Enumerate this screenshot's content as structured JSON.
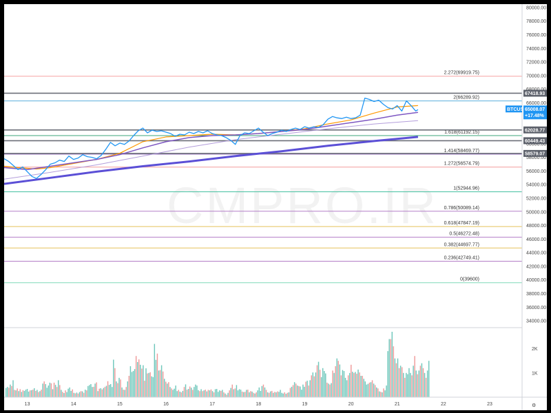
{
  "watermark": "CMPRO.IR",
  "chart_data": {
    "type": "line",
    "symbol": "BTCUSD",
    "last_price": "65008.07",
    "change_pct": "+17.48%",
    "y_ticks": [
      "80000.00",
      "78000.00",
      "76000.00",
      "74000.00",
      "72000.00",
      "70000.00",
      "68000.00",
      "66000.00",
      "64000.00",
      "62000.00",
      "60000.00",
      "58000.00",
      "56000.00",
      "54000.00",
      "52000.00",
      "50000.00",
      "48000.00",
      "46000.00",
      "44000.00",
      "42000.00",
      "40000.00",
      "38000.00",
      "36000.00",
      "34000.00"
    ],
    "ylim": [
      33000,
      80500
    ],
    "x_ticks": [
      {
        "label": "13",
        "x": 13.5
      },
      {
        "label": "14",
        "x": 14.5
      },
      {
        "label": "15",
        "x": 15.5
      },
      {
        "label": "16",
        "x": 16.5
      },
      {
        "label": "17",
        "x": 17.5
      },
      {
        "label": "18",
        "x": 18.5
      },
      {
        "label": "19",
        "x": 19.5
      },
      {
        "label": "20",
        "x": 20.5
      },
      {
        "label": "21",
        "x": 21.5
      },
      {
        "label": "22",
        "x": 22.5
      },
      {
        "label": "23",
        "x": 23.5
      }
    ],
    "xlim": [
      13.0,
      24.2
    ],
    "volume_ticks": [
      "2K",
      "1K"
    ],
    "volume_ylim": [
      0,
      2700
    ],
    "fib_levels": [
      {
        "label": "2.272(69919.75)",
        "value": 69919.75,
        "color": "#f7a1a1"
      },
      {
        "label": "2(66289.92)",
        "value": 66289.92,
        "color": "#5aaedc"
      },
      {
        "label": "1.618(61192.15)",
        "value": 61192.15,
        "color": "#3aa57a"
      },
      {
        "label": "1.414(58469.77)",
        "value": 58469.77,
        "color": "#a07ac8"
      },
      {
        "label": "1.272(56574.79)",
        "value": 56574.79,
        "color": "#f39a9a"
      },
      {
        "label": "1(52944.96)",
        "value": 52944.96,
        "color": "#3fbf9e"
      },
      {
        "label": "0.786(50089.14)",
        "value": 50089.14,
        "color": "#b37cc7"
      },
      {
        "label": "0.618(47847.19)",
        "value": 47847.19,
        "color": "#e5c15a"
      },
      {
        "label": "0.5(46272.48)",
        "value": 46272.48,
        "color": "#b37cc7"
      },
      {
        "label": "0.382(44697.77)",
        "value": 44697.77,
        "color": "#e5c15a"
      },
      {
        "label": "0.236(42749.41)",
        "value": 42749.41,
        "color": "#b37cc7"
      },
      {
        "label": "0(39600)",
        "value": 39600,
        "color": "#7fd9b8"
      }
    ],
    "horizontal_levels": [
      {
        "label": "67418.93",
        "value": 67418.93
      },
      {
        "label": "62028.77",
        "value": 62028.77
      },
      {
        "label": "60449.43",
        "value": 60449.43
      },
      {
        "label": "58579.07",
        "value": 58579.07
      }
    ],
    "price_series": {
      "color": "#2196f3",
      "points": [
        [
          13.0,
          57800
        ],
        [
          13.1,
          57400
        ],
        [
          13.2,
          56800
        ],
        [
          13.3,
          56200
        ],
        [
          13.4,
          56600
        ],
        [
          13.5,
          55900
        ],
        [
          13.6,
          55200
        ],
        [
          13.7,
          54900
        ],
        [
          13.8,
          55500
        ],
        [
          13.9,
          56200
        ],
        [
          14.0,
          57000
        ],
        [
          14.1,
          57200
        ],
        [
          14.2,
          57600
        ],
        [
          14.3,
          57400
        ],
        [
          14.4,
          58200
        ],
        [
          14.5,
          57700
        ],
        [
          14.6,
          57900
        ],
        [
          14.7,
          58400
        ],
        [
          14.8,
          58100
        ],
        [
          14.9,
          58000
        ],
        [
          15.0,
          57800
        ],
        [
          15.1,
          58300
        ],
        [
          15.2,
          59200
        ],
        [
          15.3,
          60200
        ],
        [
          15.4,
          59700
        ],
        [
          15.5,
          60100
        ],
        [
          15.6,
          59900
        ],
        [
          15.7,
          60400
        ],
        [
          15.8,
          61200
        ],
        [
          15.9,
          61900
        ],
        [
          16.0,
          62300
        ],
        [
          16.1,
          61600
        ],
        [
          16.2,
          62000
        ],
        [
          16.3,
          61800
        ],
        [
          16.4,
          61900
        ],
        [
          16.5,
          61700
        ],
        [
          16.6,
          61500
        ],
        [
          16.7,
          61100
        ],
        [
          16.8,
          61400
        ],
        [
          16.9,
          61300
        ],
        [
          17.0,
          61700
        ],
        [
          17.1,
          61500
        ],
        [
          17.2,
          61800
        ],
        [
          17.3,
          61600
        ],
        [
          17.4,
          61900
        ],
        [
          17.5,
          61500
        ],
        [
          17.6,
          61300
        ],
        [
          17.7,
          61200
        ],
        [
          17.8,
          60900
        ],
        [
          17.9,
          60500
        ],
        [
          18.0,
          59900
        ],
        [
          18.1,
          61200
        ],
        [
          18.2,
          61600
        ],
        [
          18.3,
          61500
        ],
        [
          18.4,
          61900
        ],
        [
          18.5,
          62300
        ],
        [
          18.6,
          61700
        ],
        [
          18.7,
          61200
        ],
        [
          18.8,
          61500
        ],
        [
          18.9,
          61700
        ],
        [
          19.0,
          62000
        ],
        [
          19.1,
          61800
        ],
        [
          19.2,
          62100
        ],
        [
          19.3,
          62300
        ],
        [
          19.4,
          62100
        ],
        [
          19.5,
          62500
        ],
        [
          19.6,
          62300
        ],
        [
          19.7,
          62500
        ],
        [
          19.8,
          62400
        ],
        [
          19.9,
          62800
        ],
        [
          20.0,
          63600
        ],
        [
          20.1,
          64000
        ],
        [
          20.2,
          63800
        ],
        [
          20.3,
          63700
        ],
        [
          20.4,
          63900
        ],
        [
          20.5,
          63700
        ],
        [
          20.6,
          63800
        ],
        [
          20.7,
          64200
        ],
        [
          20.8,
          66700
        ],
        [
          20.9,
          66500
        ],
        [
          21.0,
          66200
        ],
        [
          21.1,
          66400
        ],
        [
          21.2,
          65800
        ],
        [
          21.3,
          65300
        ],
        [
          21.4,
          65100
        ],
        [
          21.5,
          65600
        ],
        [
          21.6,
          64800
        ],
        [
          21.7,
          66300
        ],
        [
          21.8,
          65600
        ],
        [
          21.9,
          64800
        ],
        [
          21.95,
          65008
        ]
      ]
    },
    "ma_series": [
      {
        "color": "#ff9800",
        "width": 1.2,
        "points": [
          [
            13.0,
            56700
          ],
          [
            13.3,
            56500
          ],
          [
            13.7,
            56300
          ],
          [
            14.0,
            56500
          ],
          [
            14.5,
            57100
          ],
          [
            15.0,
            57700
          ],
          [
            15.5,
            58600
          ],
          [
            16.0,
            60300
          ],
          [
            16.5,
            61000
          ],
          [
            17.0,
            61200
          ],
          [
            17.5,
            61400
          ],
          [
            18.0,
            61300
          ],
          [
            18.5,
            61500
          ],
          [
            19.0,
            61800
          ],
          [
            19.5,
            62200
          ],
          [
            20.0,
            62900
          ],
          [
            20.5,
            63500
          ],
          [
            21.0,
            64500
          ],
          [
            21.5,
            65400
          ],
          [
            21.95,
            65600
          ]
        ]
      },
      {
        "color": "#7e57c2",
        "width": 1.5,
        "points": [
          [
            13.0,
            56500
          ],
          [
            13.5,
            56200
          ],
          [
            14.0,
            56700
          ],
          [
            14.5,
            57200
          ],
          [
            15.0,
            57700
          ],
          [
            15.5,
            58400
          ],
          [
            16.0,
            59400
          ],
          [
            16.5,
            60300
          ],
          [
            17.0,
            60900
          ],
          [
            17.5,
            61200
          ],
          [
            18.0,
            61300
          ],
          [
            18.5,
            61500
          ],
          [
            19.0,
            61800
          ],
          [
            19.5,
            62100
          ],
          [
            20.0,
            62600
          ],
          [
            20.5,
            63100
          ],
          [
            21.0,
            63600
          ],
          [
            21.5,
            64200
          ],
          [
            21.95,
            64600
          ]
        ]
      },
      {
        "color": "#b39ddb",
        "width": 1.0,
        "points": [
          [
            13.0,
            54800
          ],
          [
            14.0,
            55800
          ],
          [
            15.0,
            56900
          ],
          [
            16.0,
            58200
          ],
          [
            17.0,
            59500
          ],
          [
            18.0,
            60600
          ],
          [
            19.0,
            61400
          ],
          [
            20.0,
            62200
          ],
          [
            21.0,
            62900
          ],
          [
            21.95,
            63400
          ]
        ]
      },
      {
        "color": "#5b4fd6",
        "width": 3.0,
        "points": [
          [
            13.0,
            54100
          ],
          [
            14.0,
            55000
          ],
          [
            15.0,
            55900
          ],
          [
            16.0,
            56700
          ],
          [
            17.0,
            57400
          ],
          [
            18.0,
            58200
          ],
          [
            19.0,
            58900
          ],
          [
            20.0,
            59700
          ],
          [
            21.0,
            60400
          ],
          [
            21.95,
            61000
          ]
        ]
      }
    ],
    "volume": [
      380,
      420,
      390,
      520,
      460,
      700,
      300,
      280,
      360,
      250,
      330,
      220,
      290,
      260,
      310,
      340,
      230,
      280,
      290,
      310,
      370,
      260,
      300,
      210,
      250,
      310,
      560,
      650,
      540,
      390,
      480,
      600,
      570,
      330,
      600,
      510,
      420,
      700,
      500,
      300,
      220,
      170,
      280,
      210,
      350,
      400,
      260,
      320,
      180,
      160,
      190,
      150,
      210,
      250,
      240,
      180,
      310,
      280,
      460,
      500,
      540,
      420,
      430,
      560,
      610,
      250,
      350,
      370,
      320,
      380,
      430,
      470,
      660,
      510,
      540,
      420,
      1550,
      1200,
      650,
      580,
      800,
      730,
      400,
      310,
      300,
      420,
      650,
      880,
      1280,
      1040,
      1080,
      1160,
      1700,
      1450,
      1560,
      1340,
      1180,
      1320,
      680,
      1190,
      980,
      1000,
      1030,
      860,
      830,
      2200,
      1540,
      1800,
      1100,
      1120,
      1320,
      1060,
      760,
      640,
      560,
      620,
      420,
      360,
      300,
      350,
      480,
      250,
      300,
      230,
      200,
      260,
      420,
      530,
      310,
      340,
      440,
      390,
      300,
      420,
      520,
      480,
      290,
      250,
      330,
      250,
      280,
      310,
      240,
      300,
      280,
      320,
      250,
      200,
      330,
      340,
      220,
      280,
      260,
      300,
      200,
      150,
      100,
      180,
      280,
      380,
      520,
      330,
      360,
      500,
      280,
      330,
      310,
      230,
      210,
      220,
      300,
      310,
      200,
      250,
      230,
      180,
      150,
      200,
      280,
      400,
      260,
      460,
      520,
      400,
      300,
      200,
      180,
      240,
      260,
      180,
      220,
      200,
      240,
      220,
      300,
      180,
      150,
      200,
      140,
      180,
      200,
      380,
      430,
      500,
      620,
      560,
      480,
      460,
      440,
      310,
      520,
      430,
      640,
      680,
      480,
      700,
      900,
      1020,
      860,
      1020,
      1320,
      1460,
      1130,
      830,
      1200,
      1080,
      980,
      600,
      560,
      520,
      580,
      1100,
      1000,
      1280,
      1600,
      1500,
      1350,
      900,
      1120,
      1080,
      800,
      700,
      900,
      1000,
      1340,
      1050,
      1000,
      1040,
      970,
      1140,
      1020,
      880,
      880,
      760,
      650,
      520,
      550,
      600,
      620,
      700,
      560,
      500,
      400,
      360,
      240,
      220,
      200,
      360,
      280,
      480,
      1900,
      2400,
      2400,
      2700,
      2100,
      1600,
      1400,
      1600,
      1200,
      1300,
      1240,
      1000,
      800,
      1000,
      950,
      1200,
      1000,
      900,
      1300,
      1700,
      1100,
      950,
      1100,
      1300,
      1400,
      1200,
      1000,
      800,
      1100,
      1500
    ]
  }
}
